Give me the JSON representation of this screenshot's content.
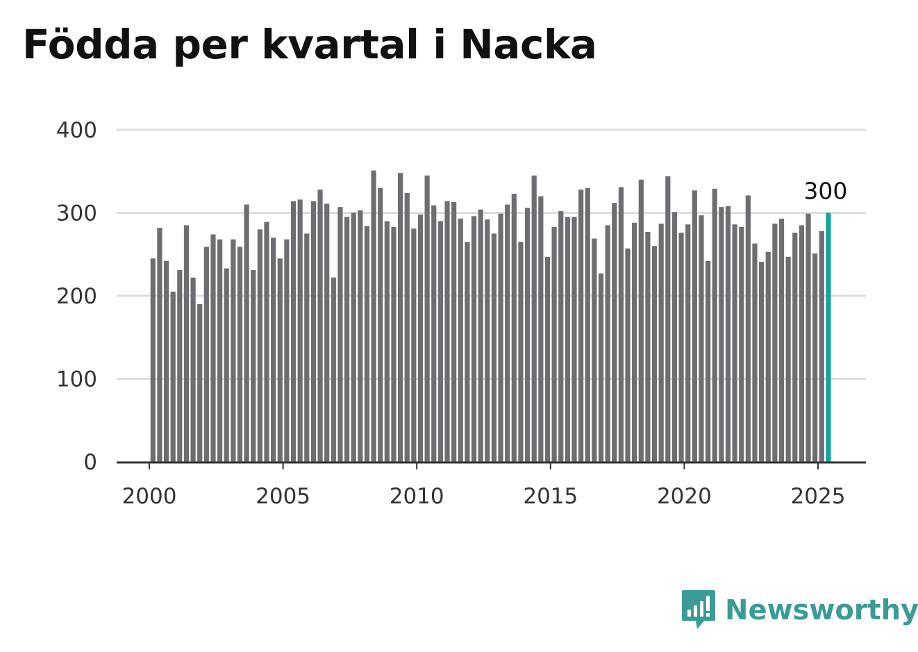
{
  "title": "Födda per kvartal i Nacka",
  "brand": {
    "name": "Newsworthy",
    "icon": "newsworthy-logo-icon",
    "color": "#3a9b97"
  },
  "colors": {
    "bar": "#6e6d72",
    "highlight": "#16a3a0",
    "grid": "#dddddd",
    "axis": "#333333"
  },
  "chart_data": {
    "type": "bar",
    "title": "Födda per kvartal i Nacka",
    "xlabel": "",
    "ylabel": "",
    "ylim": [
      0,
      400
    ],
    "yticks": [
      0,
      100,
      200,
      300,
      400
    ],
    "ytick_labels": [
      "0",
      "100",
      "200",
      "300",
      "400"
    ],
    "xticks": [
      2000,
      2005,
      2010,
      2015,
      2020,
      2025
    ],
    "xtick_labels": [
      "2000",
      "2005",
      "2010",
      "2015",
      "2020",
      "2025"
    ],
    "grid": true,
    "start_year": 2000,
    "highlight_label": "300",
    "values": [
      245,
      282,
      242,
      205,
      231,
      285,
      222,
      190,
      259,
      274,
      268,
      233,
      268,
      259,
      310,
      231,
      280,
      289,
      270,
      245,
      268,
      314,
      316,
      275,
      314,
      328,
      311,
      222,
      307,
      295,
      300,
      303,
      284,
      351,
      330,
      290,
      283,
      348,
      324,
      281,
      298,
      345,
      309,
      290,
      314,
      313,
      293,
      265,
      296,
      304,
      292,
      275,
      299,
      310,
      323,
      265,
      306,
      345,
      320,
      247,
      283,
      302,
      295,
      295,
      328,
      330,
      269,
      227,
      285,
      312,
      331,
      257,
      288,
      340,
      277,
      260,
      287,
      344,
      301,
      276,
      286,
      327,
      297,
      242,
      329,
      307,
      308,
      286,
      283,
      321,
      263,
      241,
      253,
      287,
      293,
      247,
      276,
      285,
      299,
      251,
      278,
      300
    ]
  }
}
